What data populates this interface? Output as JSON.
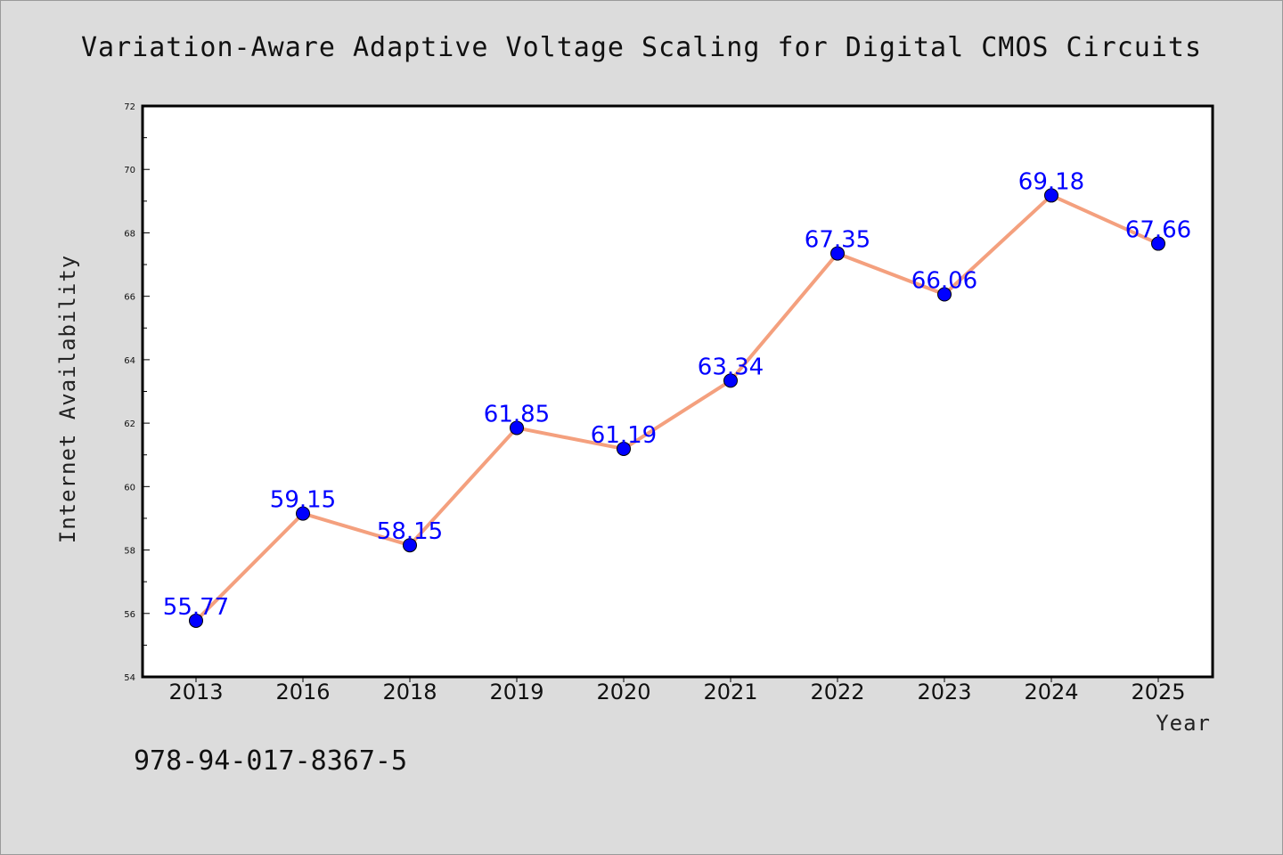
{
  "chart_data": {
    "type": "line",
    "title": "Variation-Aware Adaptive Voltage Scaling for Digital CMOS Circuits",
    "xlabel": "Year",
    "ylabel": "Internet Availability",
    "categories": [
      "2013",
      "2016",
      "2018",
      "2019",
      "2020",
      "2021",
      "2022",
      "2023",
      "2024",
      "2025"
    ],
    "series": [
      {
        "values": [
          55.77,
          59.15,
          58.15,
          61.85,
          61.19,
          63.34,
          67.35,
          66.06,
          69.18,
          67.66
        ]
      }
    ],
    "data_labels": [
      "55.77",
      "59.15",
      "58.15",
      "61.85",
      "61.19",
      "63.34",
      "67.35",
      "66.06",
      "69.18",
      "67.66"
    ],
    "ylim": [
      54,
      72
    ],
    "yticks": [
      "54",
      "56",
      "58",
      "60",
      "62",
      "64",
      "66",
      "68",
      "70",
      "72"
    ],
    "grid": false,
    "legend": "none"
  },
  "caption": "978-94-017-8367-5",
  "colors": {
    "background": "#dcdcdc",
    "plot_area": "#ffffff",
    "line": "#f4a07e",
    "marker": "#0000ff",
    "label": "#0000ff"
  }
}
